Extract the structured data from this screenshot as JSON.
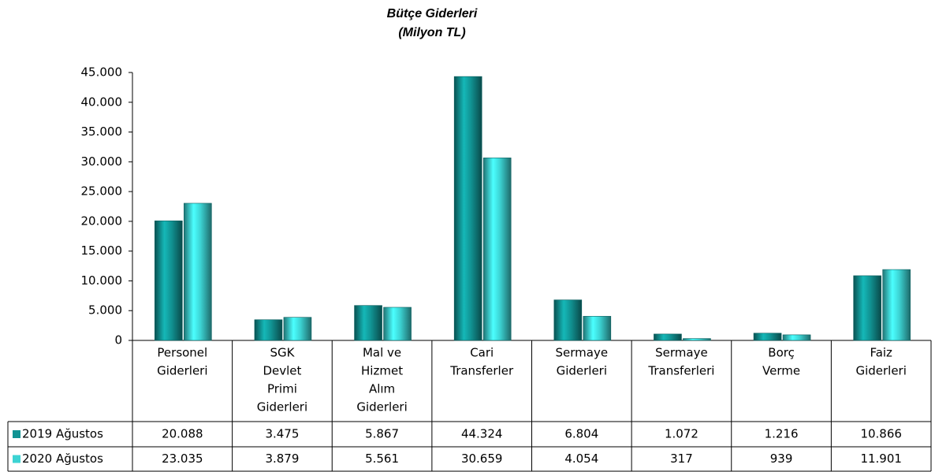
{
  "chart_data": {
    "type": "bar",
    "title": "Bütçe Giderleri",
    "subtitle": "(Milyon TL)",
    "categories": [
      [
        "Personel",
        "Giderleri"
      ],
      [
        "SGK",
        "Devlet",
        "Primi",
        "Giderleri"
      ],
      [
        "Mal ve",
        "Hizmet",
        "Alım",
        "Giderleri"
      ],
      [
        "Cari",
        "Transferler"
      ],
      [
        "Sermaye",
        "Giderleri"
      ],
      [
        "Sermaye",
        "Transferleri"
      ],
      [
        "Borç",
        "Verme"
      ],
      [
        "Faiz",
        "Giderleri"
      ]
    ],
    "series": [
      {
        "name": "2019  Ağustos",
        "color": "#119393",
        "values": [
          20088,
          3475,
          5867,
          44324,
          6804,
          1072,
          1216,
          10866
        ],
        "value_labels": [
          "20.088",
          "3.475",
          "5.867",
          "44.324",
          "6.804",
          "1.072",
          "1.216",
          "10.866"
        ]
      },
      {
        "name": "2020  Ağustos",
        "color": "#3cd3d3",
        "values": [
          23035,
          3879,
          5561,
          30659,
          4054,
          317,
          939,
          11901
        ],
        "value_labels": [
          "23.035",
          "3.879",
          "5.561",
          "30.659",
          "4.054",
          "317",
          "939",
          "11.901"
        ]
      }
    ],
    "ylim": [
      0,
      45000
    ],
    "yticks": [
      0,
      {
        "value": 5000,
        "label": "5.000"
      },
      {
        "value": 10000,
        "label": "10.000"
      },
      {
        "value": 15000,
        "label": "15.000"
      },
      {
        "value": 20000,
        "label": "20.000"
      },
      {
        "value": 25000,
        "label": "25.000"
      },
      {
        "value": 30000,
        "label": "30.000"
      },
      {
        "value": 35000,
        "label": "35.000"
      },
      {
        "value": 40000,
        "label": "40.000"
      },
      {
        "value": 45000,
        "label": "45.000"
      }
    ],
    "grid": false
  }
}
